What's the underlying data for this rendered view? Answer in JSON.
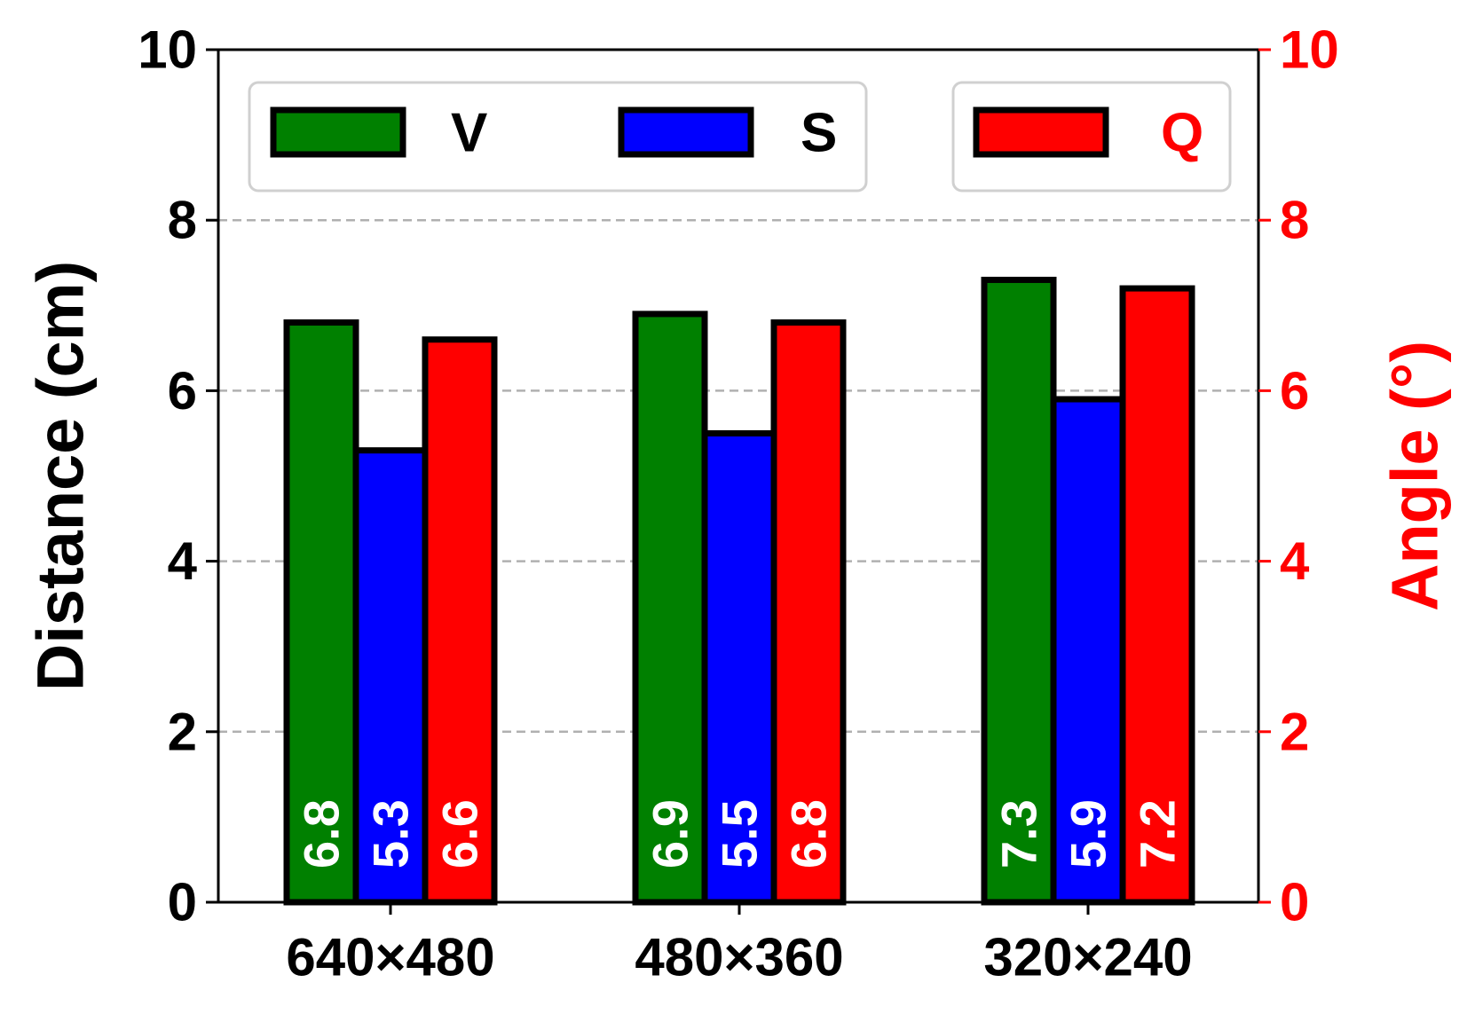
{
  "chart_data": {
    "type": "bar",
    "categories": [
      "640×480",
      "480×360",
      "320×240"
    ],
    "series": [
      {
        "name": "V",
        "axis": "left",
        "color": "#008000",
        "values": [
          6.8,
          6.9,
          7.3
        ],
        "labels": [
          "6.8",
          "6.9",
          "7.3"
        ]
      },
      {
        "name": "S",
        "axis": "left",
        "color": "#0000ff",
        "values": [
          5.3,
          5.5,
          5.9
        ],
        "labels": [
          "5.3",
          "5.5",
          "5.9"
        ]
      },
      {
        "name": "Q",
        "axis": "right",
        "color": "#ff0000",
        "values": [
          6.6,
          6.8,
          7.2
        ],
        "labels": [
          "6.6",
          "6.8",
          "7.2"
        ]
      }
    ],
    "ylabel": "Distance (cm)",
    "ylabel_right": "Angle (°)",
    "ylim": [
      0,
      10
    ],
    "ylim_right": [
      0,
      10
    ],
    "yticks": [
      "0",
      "2",
      "4",
      "6",
      "8",
      "10"
    ],
    "yticks_right": [
      "0",
      "2",
      "4",
      "6",
      "8",
      "10"
    ],
    "grid": "horizontal dashed",
    "legend": "top",
    "colors": {
      "left_axis": "#000000",
      "right_axis": "#ff0000",
      "grid": "#b0b0b0"
    }
  }
}
